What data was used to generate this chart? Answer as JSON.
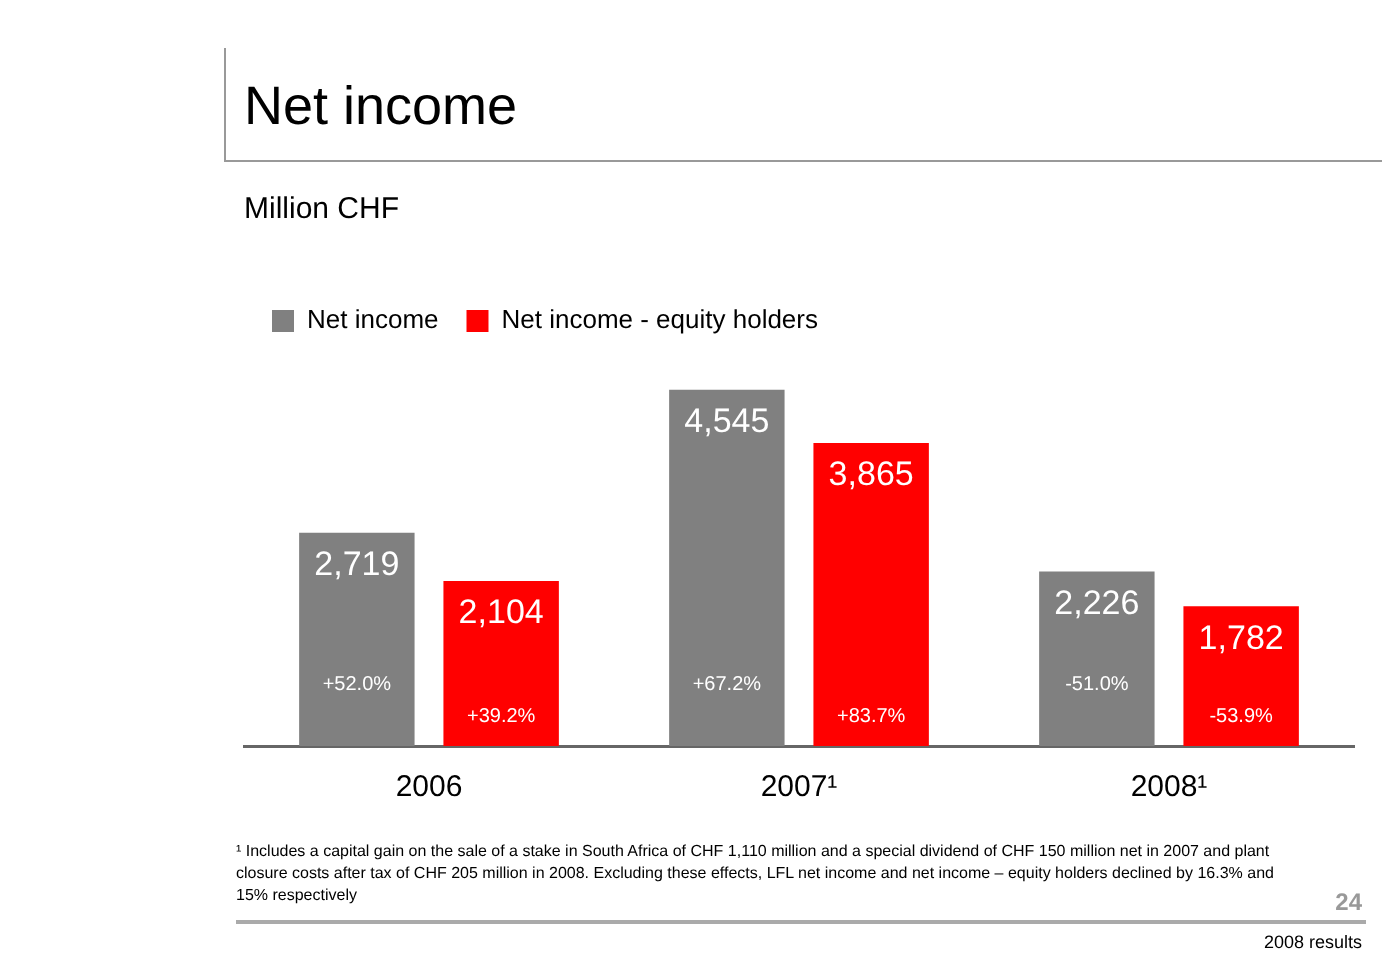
{
  "chart_data": {
    "type": "bar",
    "title": "Net income",
    "subtitle": "Million CHF",
    "categories": [
      "2006",
      "2007¹",
      "2008¹"
    ],
    "series": [
      {
        "name": "Net income",
        "color": "#808080",
        "values": [
          2719,
          4545,
          2226
        ],
        "value_labels": [
          "2,719",
          "4,545",
          "2,226"
        ]
      },
      {
        "name": "Net income - equity holders",
        "color": "#ff0000",
        "values": [
          2104,
          3865,
          1782
        ],
        "value_labels": [
          "2,104",
          "3,865",
          "1,782"
        ]
      }
    ],
    "legend": "top left",
    "grid": false,
    "annotations": [
      "+52.0%",
      "+39.2%",
      "+67.2%",
      "+83.7%",
      "-51.0%",
      "-53.9%",
      "¹ Includes a capital gain on the sale of a stake in South Africa of CHF 1,110 million and a special dividend of CHF 150 million net in 2007 and plant closure costs after tax of CHF 205 million in 2008. Excluding these effects, LFL net income and net income – equity holders declined by 16.3% and 15% respectively",
      "24",
      "2008 results"
    ]
  }
}
